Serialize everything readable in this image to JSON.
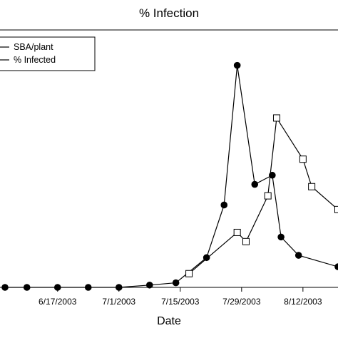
{
  "chart_data": {
    "type": "line",
    "title": "% Infection",
    "xlabel": "Date",
    "ylabel": "",
    "x_tick_labels": [
      "6/17/2003",
      "7/1/2003",
      "7/15/2003",
      "7/29/2003",
      "8/12/2003"
    ],
    "xlim": [
      "2003-06-05",
      "2003-08-20"
    ],
    "ylim": [
      0,
      100
    ],
    "grid": false,
    "legend_position": "top-left",
    "series": [
      {
        "name": "SBA/plant",
        "marker": "filled-circle",
        "color": "#000000",
        "points": [
          {
            "x": "2003-06-05",
            "y": 0
          },
          {
            "x": "2003-06-10",
            "y": 0
          },
          {
            "x": "2003-06-17",
            "y": 0
          },
          {
            "x": "2003-06-24",
            "y": 0
          },
          {
            "x": "2003-07-01",
            "y": 0
          },
          {
            "x": "2003-07-08",
            "y": 1
          },
          {
            "x": "2003-07-14",
            "y": 2
          },
          {
            "x": "2003-07-21",
            "y": 13
          },
          {
            "x": "2003-07-25",
            "y": 36
          },
          {
            "x": "2003-07-28",
            "y": 97
          },
          {
            "x": "2003-08-01",
            "y": 45
          },
          {
            "x": "2003-08-05",
            "y": 49
          },
          {
            "x": "2003-08-07",
            "y": 22
          },
          {
            "x": "2003-08-11",
            "y": 14
          },
          {
            "x": "2003-08-20",
            "y": 9
          }
        ]
      },
      {
        "name": "% Infected",
        "marker": "open-square",
        "color": "#000000",
        "points": [
          {
            "x": "2003-07-17",
            "y": 6
          },
          {
            "x": "2003-07-28",
            "y": 24
          },
          {
            "x": "2003-07-30",
            "y": 20
          },
          {
            "x": "2003-08-04",
            "y": 40
          },
          {
            "x": "2003-08-06",
            "y": 74
          },
          {
            "x": "2003-08-12",
            "y": 56
          },
          {
            "x": "2003-08-14",
            "y": 44
          },
          {
            "x": "2003-08-20",
            "y": 34
          }
        ]
      }
    ]
  }
}
